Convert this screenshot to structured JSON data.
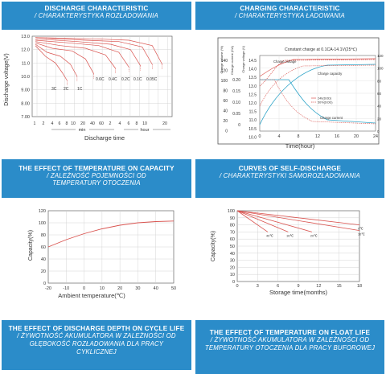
{
  "colors": {
    "header_bg": "#2b8cc9",
    "header_text": "#ffffff",
    "curve_red": "#d9534f",
    "curve_teal": "#2fa4c8"
  },
  "panels": {
    "discharge": {
      "title": "DISCHARGE CHARACTERISTIC",
      "subtitle": "/ CHARAKTERYSTYKA ROZŁADOWANIA"
    },
    "charging": {
      "title": "CHARGING CHARACTERISTIC",
      "subtitle": "/ CHARAKTERYSTYKA ŁADOWANIA"
    },
    "temperature": {
      "title": "THE EFFECT OF TEMPERATURE ON CAPACITY",
      "subtitle": "/ ZALEŻNOŚĆ POJEMNOŚCI OD TEMPERATURY OTOCZENIA"
    },
    "self_discharge": {
      "title": "CURVES OF SELF-DISCHARGE",
      "subtitle": "/ CHARAKTERYSTYKI SAMOROZŁADOWANIA"
    },
    "cycle_life": {
      "title": "THE EFFECT OF DISCHARGE DEPTH ON CYCLE LIFE",
      "subtitle": "/ ŻYWOTNOŚĆ AKUMULATORA W ZALEŻNOŚCI OD GŁĘBOKOŚĆ ROZŁADOWANIA DLA PRACY CYKLICZNEJ"
    },
    "float_life": {
      "title": "THE EFFECT OF TEMPERATURE ON FLOAT LIFE",
      "subtitle": "/ ŻYWOTNOŚĆ AKUMULATORA W ZALEŻNOŚCI OD TEMPERATURY OTOCZENIA DLA PRACY BUFOROWEJ"
    }
  },
  "chart_data": [
    {
      "id": "discharge",
      "type": "line",
      "xlabel": "Discharge time",
      "ylabel": "Discharge voltage(V)",
      "ylim": [
        7.0,
        13.0
      ],
      "yticks": [
        "13.0",
        "12.0",
        "11.0",
        "10.0",
        "9.00",
        "8.00",
        "7.00"
      ],
      "xticks_min": [
        "1",
        "2",
        "4",
        "6",
        "8",
        "10",
        "20",
        "40",
        "60"
      ],
      "xticks_hour": [
        "2",
        "4",
        "6",
        "8",
        "10",
        "20"
      ],
      "unit_min": "min",
      "unit_hour": "hour",
      "rate_labels": [
        "3C",
        "2C",
        "1C",
        "0.6C",
        "0.4C",
        "0.2C",
        "0.1C",
        "0.05C"
      ],
      "series": [
        {
          "label": "3C",
          "points": [
            [
              0,
              12.3
            ],
            [
              0.6,
              11.5
            ],
            [
              1.2,
              11.0
            ],
            [
              1.6,
              10.3
            ],
            [
              1.9,
              9.7
            ]
          ]
        },
        {
          "label": "2C",
          "points": [
            [
              0,
              12.4
            ],
            [
              0.7,
              11.8
            ],
            [
              1.5,
              11.5
            ],
            [
              2.1,
              10.9
            ],
            [
              2.5,
              10.0
            ]
          ]
        },
        {
          "label": "1C",
          "points": [
            [
              0,
              12.5
            ],
            [
              1.0,
              12.1
            ],
            [
              2.2,
              11.9
            ],
            [
              3.0,
              11.3
            ],
            [
              3.5,
              10.2
            ]
          ]
        },
        {
          "label": "0.6C",
          "points": [
            [
              0,
              12.6
            ],
            [
              1.5,
              12.3
            ],
            [
              3.0,
              12.1
            ],
            [
              4.2,
              11.6
            ],
            [
              4.8,
              10.6
            ]
          ]
        },
        {
          "label": "0.4C",
          "points": [
            [
              0,
              12.7
            ],
            [
              2.0,
              12.5
            ],
            [
              3.8,
              12.3
            ],
            [
              5.0,
              11.8
            ],
            [
              5.6,
              10.7
            ]
          ]
        },
        {
          "label": "0.2C",
          "points": [
            [
              0,
              12.8
            ],
            [
              2.5,
              12.6
            ],
            [
              4.5,
              12.4
            ],
            [
              5.7,
              12.0
            ],
            [
              6.3,
              10.8
            ]
          ]
        },
        {
          "label": "0.1C",
          "points": [
            [
              0,
              12.9
            ],
            [
              3.0,
              12.7
            ],
            [
              5.0,
              12.6
            ],
            [
              6.4,
              12.2
            ],
            [
              7.0,
              10.9
            ]
          ]
        },
        {
          "label": "0.05C",
          "points": [
            [
              0,
              12.9
            ],
            [
              3.5,
              12.8
            ],
            [
              5.6,
              12.7
            ],
            [
              7.0,
              12.3
            ],
            [
              7.6,
              10.9
            ]
          ]
        }
      ]
    },
    {
      "id": "charging",
      "type": "line",
      "xlabel": "Time(hour)",
      "xlim": [
        0,
        24
      ],
      "xticks": [
        "0",
        "4",
        "8",
        "12",
        "16",
        "20",
        "24"
      ],
      "caption": "Constant charge at 0.1CA-14.1V(25℃)",
      "left_axis_labels": [
        "Charge volume (%)",
        "Charge current (CA)",
        "Charge voltage (V)"
      ],
      "col_volume": [
        "140",
        "120",
        "100",
        "80",
        "60",
        "40",
        "20",
        "0"
      ],
      "col_current": [
        "0.20",
        "0.15",
        "0.10",
        "0.05",
        "0"
      ],
      "col_voltage": [
        "14.5",
        "14.0",
        "13.5",
        "13.0",
        "12.5",
        "12.0",
        "11.5",
        "11.0",
        "10.5",
        "10.0"
      ],
      "right_ticks": [
        "120",
        "100",
        "80",
        "60",
        "40",
        "20",
        "0"
      ],
      "annotations": {
        "charge_voltage": "Charge voltage",
        "charge_capacity": "Charge capacity",
        "charge_current": "Charge current",
        "legend_a": "24h(DOD)",
        "legend_b": "50%(DOD)"
      }
    },
    {
      "id": "temperature",
      "type": "line",
      "xlabel": "Ambient temperature(℃)",
      "ylabel": "Capacity(%)",
      "xlim": [
        -20,
        50
      ],
      "ylim": [
        0,
        120
      ],
      "xticks": [
        "-20",
        "-10",
        "0",
        "10",
        "20",
        "30",
        "40",
        "50"
      ],
      "yticks": [
        "120",
        "100",
        "80",
        "60",
        "40",
        "20",
        "0"
      ],
      "series": [
        {
          "x": [
            -20,
            -10,
            0,
            10,
            20,
            30,
            40,
            50
          ],
          "y": [
            60,
            72,
            82,
            90,
            96,
            100,
            102,
            103
          ]
        }
      ]
    },
    {
      "id": "self_discharge",
      "type": "line",
      "xlabel": "Storage time(months)",
      "ylabel": "Capacity(%)",
      "xlim": [
        0,
        18
      ],
      "ylim": [
        0,
        100
      ],
      "xticks": [
        "0",
        "3",
        "6",
        "9",
        "12",
        "15",
        "18"
      ],
      "yticks": [
        "100",
        "90",
        "80",
        "70",
        "60",
        "50",
        "40",
        "30",
        "20",
        "10",
        "0"
      ],
      "series": [
        {
          "label": "0℃",
          "x": [
            0,
            18
          ],
          "y": [
            100,
            80
          ]
        },
        {
          "label": "10℃",
          "x": [
            0,
            18
          ],
          "y": [
            100,
            72
          ]
        },
        {
          "label": "20℃",
          "x": [
            0,
            11
          ],
          "y": [
            100,
            70
          ]
        },
        {
          "label": "30℃",
          "x": [
            0,
            7.5
          ],
          "y": [
            100,
            70
          ]
        },
        {
          "label": "40℃",
          "x": [
            0,
            4.5
          ],
          "y": [
            100,
            70
          ]
        }
      ]
    }
  ]
}
